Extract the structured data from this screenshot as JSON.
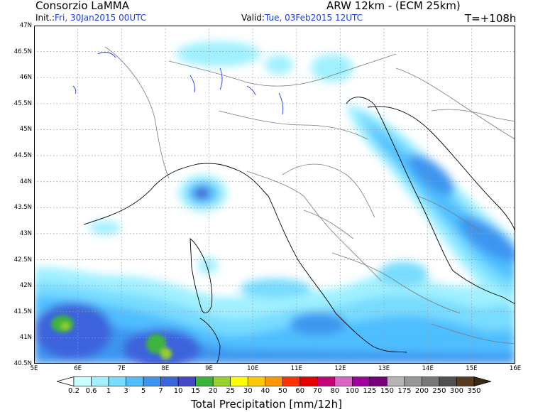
{
  "header": {
    "org": "Consorzio LaMMA",
    "init_label": "Init.:",
    "init_value": "Fri, 30Jan2015 00UTC",
    "model": "ARW 12km - (ECM 25km)",
    "valid_label": "Valid:",
    "valid_value": "Tue, 03Feb2015 12UTC",
    "lead": "T=+108h"
  },
  "axes": {
    "lat_labels": [
      "47N",
      "46.5N",
      "46N",
      "45.5N",
      "45N",
      "44.5N",
      "44N",
      "43.5N",
      "43N",
      "42.5N",
      "42N",
      "41.5N",
      "41N",
      "40.5N"
    ],
    "lon_labels": [
      "5E",
      "6E",
      "7E",
      "8E",
      "9E",
      "10E",
      "11E",
      "12E",
      "13E",
      "14E",
      "15E",
      "16E"
    ]
  },
  "colorbar": {
    "title": "Total Precipitation [mm/12h]",
    "labels": [
      "0.2",
      "0.6",
      "1",
      "3",
      "5",
      "7",
      "10",
      "15",
      "20",
      "25",
      "30",
      "40",
      "50",
      "60",
      "70",
      "80",
      "100",
      "125",
      "150",
      "175",
      "200",
      "250",
      "300",
      "350"
    ],
    "colors": [
      "#ffffff",
      "#c8ffff",
      "#a0f0ff",
      "#78dcff",
      "#50beff",
      "#3c96f0",
      "#3c64dc",
      "#4646c8",
      "#3cb43c",
      "#96d228",
      "#ffff00",
      "#ffc800",
      "#ff9600",
      "#ff3200",
      "#e60000",
      "#c80078",
      "#dc64c8",
      "#a000a0",
      "#780078",
      "#b4b4b4",
      "#969696",
      "#787878",
      "#505050",
      "#5a3c1e",
      "#3c2814"
    ]
  }
}
